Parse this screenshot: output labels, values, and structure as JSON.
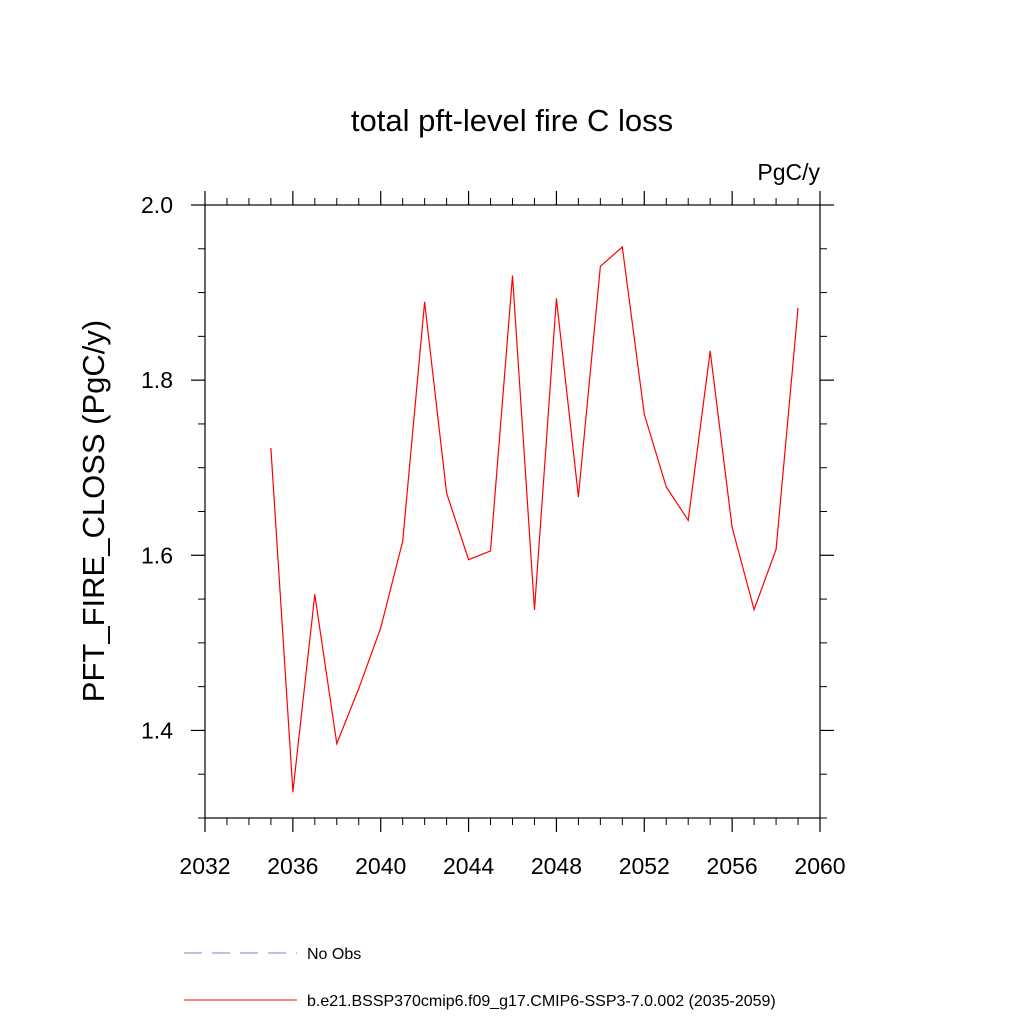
{
  "chart_data": {
    "type": "line",
    "title": "total pft-level fire C loss",
    "units": "PgC/y",
    "xlabel": "",
    "ylabel": "PFT_FIRE_CLOSS  (PgC/y)",
    "xlim": [
      2032,
      2060
    ],
    "ylim": [
      1.3,
      2.0
    ],
    "xticks": [
      2032,
      2036,
      2040,
      2044,
      2048,
      2052,
      2056,
      2060
    ],
    "xtick_labels": [
      "2032",
      "2036",
      "2040",
      "2044",
      "2048",
      "2052",
      "2056",
      "2060"
    ],
    "yticks": [
      1.4,
      1.6,
      1.8,
      2.0
    ],
    "ytick_labels": [
      "1.4",
      "1.6",
      "1.8",
      "2.0"
    ],
    "series": [
      {
        "name": "b.e21.BSSP370cmip6.f09_g17.CMIP6-SSP3-7.0.002 (2035-2059)",
        "color": "#ff0000",
        "style": "solid",
        "x": [
          2035,
          2036,
          2037,
          2038,
          2039,
          2040,
          2041,
          2042,
          2043,
          2044,
          2045,
          2046,
          2047,
          2048,
          2049,
          2050,
          2051,
          2052,
          2053,
          2054,
          2055,
          2056,
          2057,
          2058,
          2059
        ],
        "y": [
          1.722,
          1.33,
          1.555,
          1.385,
          1.448,
          1.517,
          1.616,
          1.889,
          1.671,
          1.595,
          1.605,
          1.919,
          1.538,
          1.893,
          1.667,
          1.93,
          1.952,
          1.761,
          1.678,
          1.64,
          1.833,
          1.632,
          1.538,
          1.607,
          1.882
        ]
      }
    ],
    "legend": [
      {
        "label": "No Obs",
        "color": "#8080c0",
        "style": "dashed"
      },
      {
        "label": "b.e21.BSSP370cmip6.f09_g17.CMIP6-SSP3-7.0.002 (2035-2059)",
        "color": "#ff0000",
        "style": "solid"
      }
    ]
  }
}
